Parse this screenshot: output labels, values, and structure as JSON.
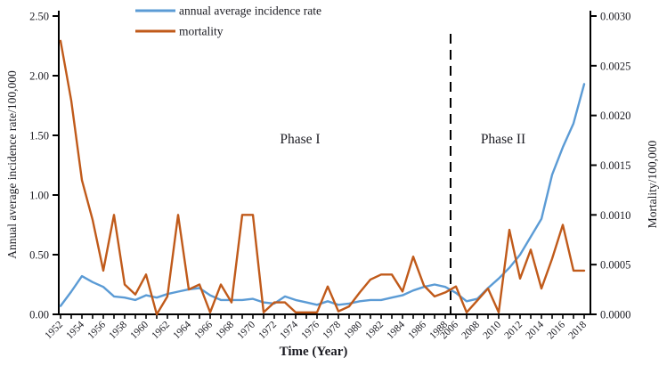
{
  "figure": {
    "x_title": "Time  (Year)",
    "left_axis": {
      "title": "Annual average incidence rate/100,000",
      "tick_labels": [
        "0.00",
        "0.50",
        "1.00",
        "1.50",
        "2.00",
        "2.50"
      ],
      "min": 0,
      "max": 2.5,
      "step": 0.5
    },
    "right_axis": {
      "title": "Mortality/100,000",
      "tick_labels": [
        "0.0000",
        "0.0005",
        "0.0010",
        "0.0015",
        "0.0020",
        "0.0025",
        "0.0030"
      ],
      "min": 0,
      "max": 0.003,
      "step": 0.0005
    },
    "x_axis": {
      "tick_labels": [
        "1952",
        "1954",
        "1956",
        "1958",
        "1960",
        "1962",
        "1964",
        "1966",
        "1968",
        "1970",
        "1972",
        "1974",
        "1976",
        "1978",
        "1980",
        "1982",
        "1984",
        "1986",
        "1988",
        "2006",
        "2008",
        "2010",
        "2012",
        "2014",
        "2016",
        "2018"
      ]
    },
    "legend": [
      {
        "label": "annual average incidence rate",
        "color": "#5B9BD5"
      },
      {
        "label": "mortality",
        "color": "#C05A1A"
      }
    ],
    "annotations": {
      "phase1": "Phase I",
      "phase2": "Phase II",
      "divider_after_year": 1988
    },
    "colors": {
      "incidence_line": "#5B9BD5",
      "mortality_line": "#C05A1A",
      "axis": "#000000",
      "text": "#1b1b22"
    }
  },
  "chart_data": {
    "type": "line",
    "title": "",
    "xlabel": "Time  (Year)",
    "ylabel_left": "Annual average incidence rate/100,000",
    "ylabel_right": "Mortality/100,000",
    "ylim_left": [
      0,
      2.5
    ],
    "ylim_right": [
      0,
      0.003
    ],
    "grid": false,
    "legend_position": "top",
    "x": [
      1952,
      1953,
      1954,
      1955,
      1956,
      1957,
      1958,
      1959,
      1960,
      1961,
      1962,
      1963,
      1964,
      1965,
      1966,
      1967,
      1968,
      1969,
      1970,
      1971,
      1972,
      1973,
      1974,
      1975,
      1976,
      1977,
      1978,
      1979,
      1980,
      1981,
      1982,
      1983,
      1984,
      1985,
      1986,
      1987,
      1988,
      2006,
      2007,
      2008,
      2009,
      2010,
      2011,
      2012,
      2013,
      2014,
      2015,
      2016,
      2017,
      2018
    ],
    "series": [
      {
        "name": "annual average incidence rate",
        "axis": "left",
        "color": "#5B9BD5",
        "values": [
          0.07,
          0.19,
          0.32,
          0.27,
          0.23,
          0.15,
          0.14,
          0.12,
          0.16,
          0.14,
          0.17,
          0.19,
          0.21,
          0.22,
          0.16,
          0.12,
          0.12,
          0.12,
          0.13,
          0.1,
          0.09,
          0.15,
          0.12,
          0.1,
          0.08,
          0.11,
          0.08,
          0.09,
          0.11,
          0.12,
          0.12,
          0.14,
          0.16,
          0.2,
          0.23,
          0.25,
          0.23,
          0.18,
          0.11,
          0.13,
          0.22,
          0.3,
          0.39,
          0.5,
          0.65,
          0.8,
          1.17,
          1.4,
          1.6,
          1.93
        ]
      },
      {
        "name": "mortality",
        "axis": "right",
        "color": "#C05A1A",
        "values": [
          0.00275,
          0.00215,
          0.00135,
          0.00095,
          0.00044,
          0.001,
          0.0003,
          0.0002,
          0.0004,
          0.0,
          0.00018,
          0.001,
          0.00025,
          0.0003,
          2e-05,
          0.0003,
          0.00012,
          0.001,
          0.001,
          2e-05,
          0.00012,
          0.00012,
          2e-05,
          2e-05,
          2e-05,
          0.00028,
          3e-05,
          8e-05,
          0.00022,
          0.00035,
          0.0004,
          0.0004,
          0.00023,
          0.00058,
          0.00029,
          0.00018,
          0.00022,
          0.00028,
          2e-05,
          0.00014,
          0.00026,
          2e-05,
          0.00085,
          0.00036,
          0.00065,
          0.00026,
          0.00056,
          0.0009,
          0.00044,
          0.00044
        ]
      }
    ]
  }
}
